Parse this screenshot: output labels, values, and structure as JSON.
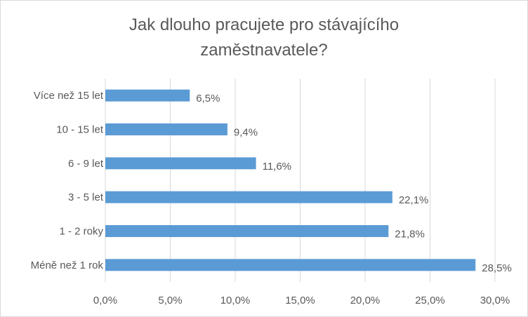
{
  "chart_data": {
    "type": "bar",
    "orientation": "horizontal",
    "title": "Jak dlouho pracujete pro stávajícího\nzaměstnavatele?",
    "categories": [
      "Méně než 1 rok",
      "1 - 2 roky",
      "3 - 5 let",
      "6 - 9 let",
      "10 - 15 let",
      "Více než 15 let"
    ],
    "values": [
      28.5,
      21.8,
      22.1,
      11.6,
      9.4,
      6.5
    ],
    "data_labels": [
      "28,5%",
      "21,8%",
      "22,1%",
      "11,6%",
      "9,4%",
      "6,5%"
    ],
    "x_ticks": [
      "0,0%",
      "5,0%",
      "10,0%",
      "15,0%",
      "20,0%",
      "25,0%",
      "30,0%"
    ],
    "xlim": [
      0,
      30
    ],
    "grid": true,
    "bar_color": "#5b9bd5",
    "xlabel": "",
    "ylabel": ""
  }
}
